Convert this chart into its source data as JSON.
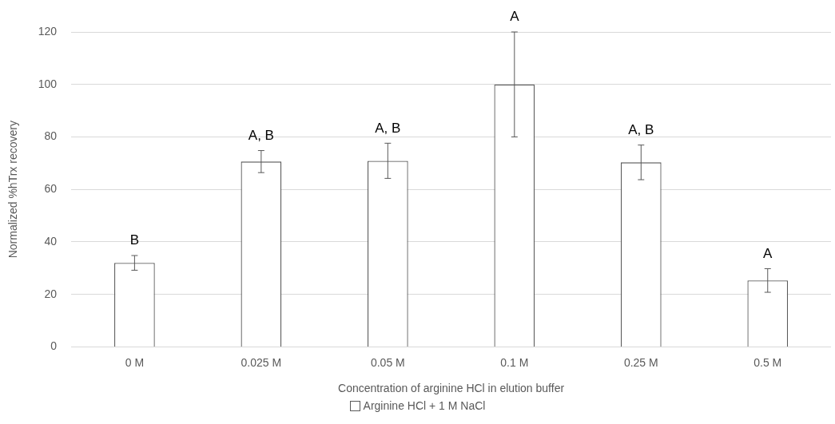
{
  "chart_data": {
    "type": "bar",
    "xlabel": "Concentration of arginine HCl in elution buffer",
    "ylabel": "Normalized %hTrx recovery",
    "categories": [
      "0 M",
      "0.025 M",
      "0.05 M",
      "0.1 M",
      "0.25 M",
      "0.5 M"
    ],
    "series": [
      {
        "name": "Arginine HCl + 1 M NaCl",
        "color": "#ffffff",
        "values": [
          32,
          70.6,
          70.9,
          100,
          70.3,
          25.3
        ],
        "errors": [
          2.8,
          4.2,
          6.7,
          20,
          6.6,
          4.5
        ]
      }
    ],
    "ylim": [
      0,
      120
    ],
    "yticks": [
      0,
      20,
      40,
      60,
      80,
      100,
      120
    ],
    "grid": "y",
    "legend": "bottom",
    "annotations": [
      {
        "text": "B",
        "x": "0 M",
        "y": 34.8
      },
      {
        "text": "A, B",
        "x": "0.025 M",
        "y": 74.8
      },
      {
        "text": "A, B",
        "x": "0.05 M",
        "y": 77.6
      },
      {
        "text": "A",
        "x": "0.1 M",
        "y": 120
      },
      {
        "text": "A, B",
        "x": "0.25 M",
        "y": 76.9
      },
      {
        "text": "A",
        "x": "0.5 M",
        "y": 29.8
      }
    ]
  }
}
